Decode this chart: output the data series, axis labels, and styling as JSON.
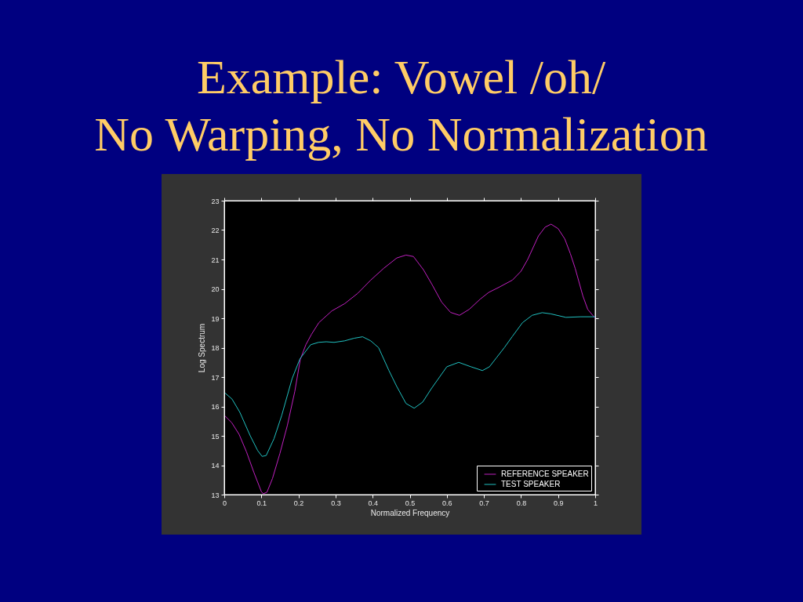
{
  "chart_data": {
    "type": "line",
    "title": "Example: Vowel /oh/\nNo Warping, No Normalization",
    "xlabel": "Normalized Frequency",
    "ylabel": "Log Spectrum",
    "xlim": [
      0,
      1
    ],
    "ylim": [
      13,
      23
    ],
    "xticks": [
      0,
      0.1,
      0.2,
      0.3,
      0.4,
      0.5,
      0.6,
      0.7,
      0.8,
      0.9,
      1
    ],
    "yticks": [
      13,
      14,
      15,
      16,
      17,
      18,
      19,
      20,
      21,
      22,
      23
    ],
    "legend": "bottom right",
    "series": [
      {
        "name": "REFERENCE SPEAKER",
        "color": "#c020c0",
        "x": [
          0,
          0.02,
          0.04,
          0.06,
          0.08,
          0.1,
          0.105,
          0.115,
          0.13,
          0.15,
          0.17,
          0.19,
          0.205,
          0.22,
          0.235,
          0.255,
          0.29,
          0.325,
          0.36,
          0.395,
          0.43,
          0.465,
          0.49,
          0.51,
          0.537,
          0.56,
          0.586,
          0.61,
          0.634,
          0.66,
          0.69,
          0.713,
          0.74,
          0.777,
          0.8,
          0.818,
          0.847,
          0.865,
          0.881,
          0.9,
          0.918,
          0.933,
          0.946,
          0.967,
          0.98,
          1.0
        ],
        "values": [
          15.7,
          15.45,
          15.05,
          14.45,
          13.75,
          13.1,
          13.03,
          13.08,
          13.55,
          14.4,
          15.35,
          16.5,
          17.6,
          18.1,
          18.45,
          18.85,
          19.25,
          19.5,
          19.85,
          20.3,
          20.7,
          21.05,
          21.15,
          21.1,
          20.65,
          20.15,
          19.55,
          19.2,
          19.1,
          19.3,
          19.65,
          19.88,
          20.05,
          20.3,
          20.6,
          21.0,
          21.8,
          22.1,
          22.2,
          22.05,
          21.7,
          21.2,
          20.7,
          19.75,
          19.3,
          19.0
        ]
      },
      {
        "name": "TEST SPEAKER",
        "color": "#20c0c0",
        "x": [
          0,
          0.021,
          0.042,
          0.07,
          0.09,
          0.102,
          0.113,
          0.134,
          0.155,
          0.183,
          0.204,
          0.233,
          0.254,
          0.275,
          0.296,
          0.324,
          0.35,
          0.373,
          0.395,
          0.416,
          0.444,
          0.465,
          0.49,
          0.512,
          0.535,
          0.558,
          0.6,
          0.632,
          0.665,
          0.696,
          0.715,
          0.734,
          0.755,
          0.776,
          0.804,
          0.83,
          0.857,
          0.88,
          0.921,
          0.96,
          1.0
        ],
        "values": [
          16.48,
          16.25,
          15.8,
          15.0,
          14.5,
          14.3,
          14.33,
          14.9,
          15.7,
          16.95,
          17.62,
          18.1,
          18.18,
          18.2,
          18.18,
          18.23,
          18.32,
          18.37,
          18.23,
          18.0,
          17.22,
          16.68,
          16.1,
          15.94,
          16.15,
          16.6,
          17.35,
          17.5,
          17.35,
          17.22,
          17.35,
          17.66,
          18.0,
          18.37,
          18.85,
          19.1,
          19.19,
          19.15,
          19.03,
          19.05,
          19.05
        ]
      }
    ]
  }
}
